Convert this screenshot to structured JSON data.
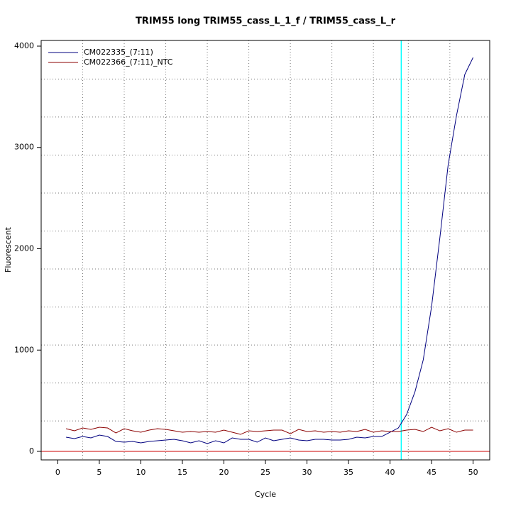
{
  "chart_data": {
    "type": "line",
    "title": "TRIM55 long TRIM55_cass_L_1_f / TRIM55_cass_L_r",
    "x_label": "Cycle",
    "y_label": "Fluorescent",
    "x": [
      1,
      2,
      3,
      4,
      5,
      6,
      7,
      8,
      9,
      10,
      11,
      12,
      13,
      14,
      15,
      16,
      17,
      18,
      19,
      20,
      21,
      22,
      23,
      24,
      25,
      26,
      27,
      28,
      29,
      30,
      31,
      32,
      33,
      34,
      35,
      36,
      37,
      38,
      39,
      40,
      41,
      42,
      43,
      44,
      45,
      46,
      47,
      48,
      49,
      50
    ],
    "series": [
      {
        "name": "CM022335_(7:11)",
        "color": "#00007f",
        "values": [
          140,
          126,
          147,
          133,
          161,
          147,
          98,
          91,
          98,
          84,
          98,
          105,
          112,
          119,
          105,
          84,
          105,
          77,
          105,
          84,
          133,
          119,
          119,
          91,
          133,
          105,
          119,
          133,
          112,
          105,
          119,
          119,
          112,
          112,
          119,
          140,
          133,
          147,
          147,
          189,
          231,
          364,
          588,
          904,
          1429,
          2109,
          2830,
          3314,
          3720,
          3888
        ]
      },
      {
        "name": "CM022366_(7:11)_NTC",
        "color": "#8b0000",
        "values": [
          224,
          203,
          231,
          217,
          238,
          231,
          182,
          224,
          203,
          189,
          210,
          224,
          217,
          203,
          189,
          196,
          189,
          196,
          189,
          210,
          189,
          168,
          203,
          196,
          203,
          210,
          210,
          175,
          217,
          196,
          203,
          189,
          196,
          189,
          203,
          196,
          217,
          189,
          203,
          196,
          196,
          210,
          217,
          196,
          238,
          203,
          224,
          189,
          210,
          210
        ]
      }
    ],
    "xlim": [
      -2,
      52
    ],
    "ylim": [
      -84,
      4056
    ],
    "xticks": [
      0,
      5,
      10,
      15,
      20,
      25,
      30,
      35,
      40,
      45,
      50
    ],
    "yticks": [
      0,
      1000,
      2000,
      3000,
      4000
    ],
    "x_grid": [
      3,
      8,
      13,
      18,
      23,
      28,
      33,
      38,
      42.2,
      47.2
    ],
    "y_grid": [
      300,
      675,
      1050,
      1425,
      1800,
      2175,
      2550,
      2925,
      3300,
      3675
    ],
    "threshold_x": 41.35,
    "threshold_color": "#00ffff",
    "baseline_y": 0,
    "baseline_color": "#cc0000",
    "legend": "top-left"
  }
}
